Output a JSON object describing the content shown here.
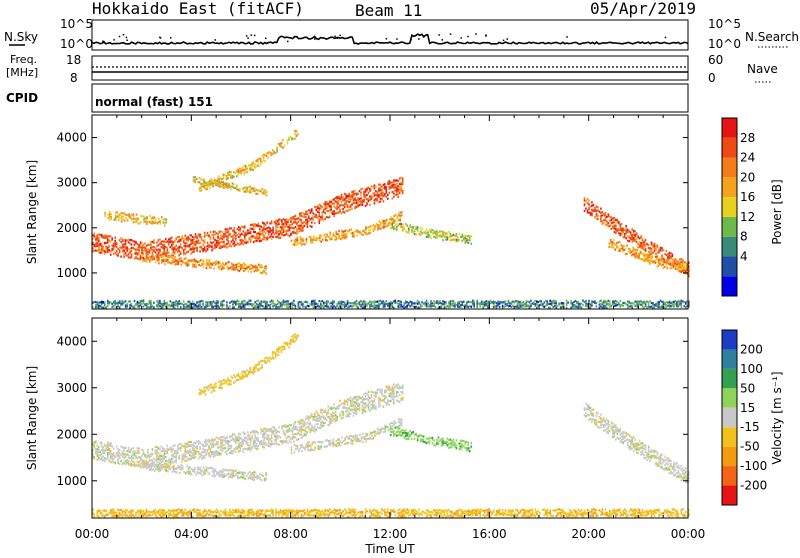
{
  "header": {
    "site": "Hokkaido East (fitACF)",
    "beam": "Beam 11",
    "date": "05/Apr/2019"
  },
  "noise_panel": {
    "left_label": "N.Sky",
    "right_label": "N.Search",
    "left_ticks": [
      "10^5",
      "10^0"
    ],
    "right_ticks": [
      "10^5",
      "10^0"
    ]
  },
  "freq_panel": {
    "left_label_1": "Freq.",
    "left_label_2": "[MHz]",
    "left_ticks": [
      "18",
      "8"
    ],
    "right_label": "Nave",
    "right_ticks": [
      "60",
      "0"
    ]
  },
  "cpid_panel": {
    "label": "CPID",
    "mode": "normal (fast) 151"
  },
  "x_axis": {
    "label": "Time UT",
    "ticks": [
      "00:00",
      "04:00",
      "08:00",
      "12:00",
      "16:00",
      "20:00",
      "00:00"
    ]
  },
  "power_scale": {
    "title": "Power [dB]",
    "ticks": [
      "28",
      "24",
      "20",
      "16",
      "12",
      "8",
      "4"
    ],
    "colors": [
      "#0000e6",
      "#1f4fa8",
      "#3a8a78",
      "#6fb84a",
      "#e6d21e",
      "#f5a31e",
      "#f57d18",
      "#f04a14",
      "#e61414"
    ]
  },
  "velocity_scale": {
    "title": "Velocity [m s⁻¹]",
    "ticks": [
      "200",
      "100",
      "50",
      "15",
      "-15",
      "-50",
      "-100",
      "-200"
    ],
    "colors": [
      "#1c3cc8",
      "#2f7f9f",
      "#34a050",
      "#8ed45a",
      "#c8c8c8",
      "#f0c21a",
      "#f59a10",
      "#f56414",
      "#e61414"
    ]
  },
  "chart_data": [
    {
      "type": "heatmap",
      "title": "",
      "xlabel": "Time UT",
      "ylabel": "Slant Range [km]",
      "ylim": [
        200,
        4500
      ],
      "xlim_hours": [
        0,
        24
      ],
      "y_ticks": [
        1000,
        2000,
        3000,
        4000
      ],
      "colorbar_label": "Power [dB]",
      "colorbar_ticks": [
        4,
        8,
        12,
        16,
        20,
        24,
        28
      ],
      "echo_bands": [
        {
          "t": [
            0.0,
            2.0,
            5.0,
            8.0,
            10.0,
            12.5
          ],
          "r": [
            1700,
            1500,
            1750,
            2050,
            2550,
            2950
          ],
          "width": 420,
          "value": 26
        },
        {
          "t": [
            2.0,
            5.0,
            7.0
          ],
          "r": [
            1350,
            1200,
            1100
          ],
          "width": 180,
          "value": 22
        },
        {
          "t": [
            0.5,
            3.0
          ],
          "r": [
            2300,
            2150
          ],
          "width": 200,
          "value": 19
        },
        {
          "t": [
            4.3,
            6.5,
            8.3
          ],
          "r": [
            2900,
            3400,
            4150
          ],
          "width": 180,
          "value": 19
        },
        {
          "t": [
            4.0,
            7.0
          ],
          "r": [
            3100,
            2800
          ],
          "width": 140,
          "value": 18
        },
        {
          "t": [
            8.0,
            11.0,
            12.5
          ],
          "r": [
            1700,
            1950,
            2300
          ],
          "width": 180,
          "value": 21
        },
        {
          "t": [
            12.0,
            13.5,
            15.3
          ],
          "r": [
            2100,
            1900,
            1750
          ],
          "width": 200,
          "value": 15
        },
        {
          "t": [
            19.8,
            21.5,
            23.0,
            24.0
          ],
          "r": [
            2550,
            1900,
            1400,
            1100
          ],
          "width": 320,
          "value": 26
        },
        {
          "t": [
            20.8,
            22.5,
            24.0
          ],
          "r": [
            1700,
            1300,
            1100
          ],
          "width": 220,
          "value": 21
        },
        {
          "t": [
            0.0,
            24.0
          ],
          "r": [
            330,
            330
          ],
          "width": 160,
          "value": 10
        }
      ]
    },
    {
      "type": "heatmap",
      "title": "",
      "xlabel": "Time UT",
      "ylabel": "Slant Range [km]",
      "ylim": [
        200,
        4500
      ],
      "xlim_hours": [
        0,
        24
      ],
      "y_ticks": [
        1000,
        2000,
        3000,
        4000
      ],
      "colorbar_label": "Velocity [m s⁻¹]",
      "colorbar_ticks": [
        -200,
        -100,
        -50,
        -15,
        15,
        50,
        100,
        200
      ],
      "echo_bands": [
        {
          "t": [
            0.0,
            2.0,
            5.0,
            8.0,
            10.0,
            12.5
          ],
          "r": [
            1700,
            1500,
            1750,
            2050,
            2550,
            2950
          ],
          "width": 420,
          "value": 0
        },
        {
          "t": [
            2.0,
            5.0,
            7.0
          ],
          "r": [
            1350,
            1200,
            1100
          ],
          "width": 180,
          "value": 0
        },
        {
          "t": [
            4.3,
            6.5,
            8.3
          ],
          "r": [
            2900,
            3400,
            4150
          ],
          "width": 180,
          "value": -30
        },
        {
          "t": [
            8.0,
            11.0,
            12.5
          ],
          "r": [
            1700,
            1950,
            2300
          ],
          "width": 180,
          "value": 0
        },
        {
          "t": [
            12.0,
            13.5,
            15.3
          ],
          "r": [
            2100,
            1900,
            1750
          ],
          "width": 200,
          "value": 40
        },
        {
          "t": [
            19.8,
            21.5,
            23.0,
            24.0
          ],
          "r": [
            2550,
            1900,
            1400,
            1100
          ],
          "width": 320,
          "value": 0
        },
        {
          "t": [
            0.0,
            24.0
          ],
          "r": [
            330,
            330
          ],
          "width": 160,
          "value": -40
        }
      ]
    }
  ]
}
